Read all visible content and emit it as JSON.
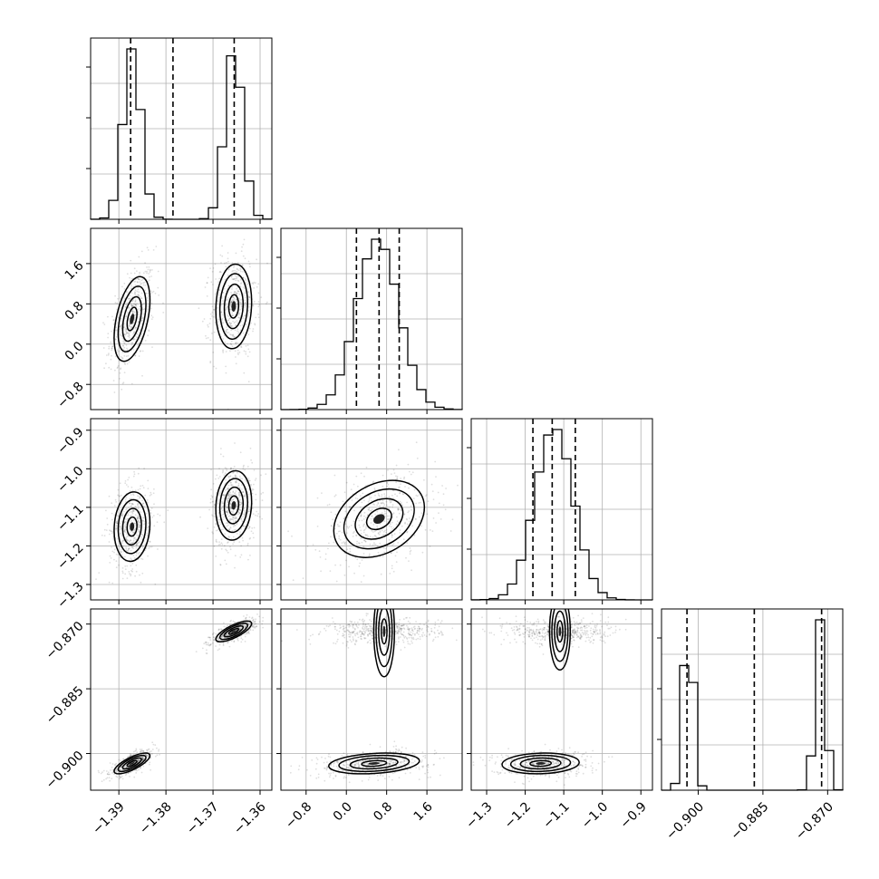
{
  "chart_data": {
    "type": "corner",
    "grid": true,
    "colors": {
      "line": "#000000",
      "grid": "#b0b0b0",
      "points": "#808080"
    },
    "parameters": [
      {
        "range": [
          -1.396,
          -1.3575
        ],
        "ticks": [
          -1.39,
          -1.38,
          -1.37,
          -1.36
        ],
        "tick_labels": [
          "−1.39",
          "−1.38",
          "−1.37",
          "−1.36"
        ],
        "quantiles": [
          -1.3875,
          -1.3785,
          -1.3655
        ],
        "modes": [
          {
            "weight": 0.5,
            "mean": -1.3872,
            "sd": 0.0019
          },
          {
            "weight": 0.5,
            "mean": -1.3656,
            "sd": 0.0019
          }
        ]
      },
      {
        "range": [
          -1.3,
          2.3
        ],
        "ticks": [
          -0.8,
          0.0,
          0.8,
          1.6
        ],
        "tick_labels": [
          "−0.8",
          "0.0",
          "0.8",
          "1.6"
        ],
        "quantiles": [
          0.2,
          0.65,
          1.05
        ],
        "modes": [
          {
            "weight": 1.0,
            "mean": 0.62,
            "sd": 0.42
          }
        ]
      },
      {
        "range": [
          -1.34,
          -0.87
        ],
        "ticks": [
          -1.3,
          -1.2,
          -1.1,
          -1.0,
          -0.9
        ],
        "tick_labels": [
          "−1.3",
          "−1.2",
          "−1.1",
          "−1.0",
          "−0.9"
        ],
        "quantiles": [
          -1.18,
          -1.13,
          -1.07
        ],
        "modes": [
          {
            "weight": 1.0,
            "mean": -1.125,
            "sd": 0.05
          }
        ]
      },
      {
        "range": [
          -0.9085,
          -0.8665
        ],
        "ticks": [
          -0.9,
          -0.885,
          -0.87
        ],
        "tick_labels": [
          "−0.900",
          "−0.885",
          "−0.870"
        ],
        "quantiles": [
          -0.9026,
          -0.887,
          -0.8714
        ],
        "modes": [
          {
            "weight": 0.5,
            "mean": -0.9023,
            "sd": 0.0012
          },
          {
            "weight": 0.5,
            "mean": -0.8717,
            "sd": 0.0012
          }
        ]
      }
    ],
    "clusters": [
      {
        "pair": [
          0,
          1
        ],
        "center": [
          -1.3872,
          0.5
        ],
        "sd": [
          0.0019,
          0.42
        ],
        "rho": 0.45
      },
      {
        "pair": [
          0,
          1
        ],
        "center": [
          -1.3656,
          0.75
        ],
        "sd": [
          0.0019,
          0.42
        ],
        "rho": 0.1
      },
      {
        "pair": [
          0,
          2
        ],
        "center": [
          -1.3872,
          -1.15
        ],
        "sd": [
          0.0019,
          0.045
        ],
        "rho": 0.1
      },
      {
        "pair": [
          0,
          2
        ],
        "center": [
          -1.3656,
          -1.095
        ],
        "sd": [
          0.0019,
          0.045
        ],
        "rho": 0.1
      },
      {
        "pair": [
          0,
          3
        ],
        "center": [
          -1.3872,
          -0.9023
        ],
        "sd": [
          0.0019,
          0.0012
        ],
        "rho": 0.75
      },
      {
        "pair": [
          0,
          3
        ],
        "center": [
          -1.3656,
          -0.8717
        ],
        "sd": [
          0.0019,
          0.0012
        ],
        "rho": 0.75
      },
      {
        "pair": [
          1,
          2
        ],
        "center": [
          0.65,
          -1.13
        ],
        "sd": [
          0.45,
          0.05
        ],
        "rho": 0.3
      },
      {
        "pair": [
          1,
          3
        ],
        "center": [
          0.75,
          -0.8717
        ],
        "sd": [
          0.45,
          0.0012
        ],
        "rho": 0.0
      },
      {
        "pair": [
          1,
          3
        ],
        "center": [
          0.55,
          -0.9023
        ],
        "sd": [
          0.45,
          0.0012
        ],
        "rho": 0.25
      },
      {
        "pair": [
          2,
          3
        ],
        "center": [
          -1.11,
          -0.8717
        ],
        "sd": [
          0.05,
          0.0012
        ],
        "rho": 0.0
      },
      {
        "pair": [
          2,
          3
        ],
        "center": [
          -1.16,
          -0.9023
        ],
        "sd": [
          0.05,
          0.0012
        ],
        "rho": 0.1
      }
    ]
  }
}
